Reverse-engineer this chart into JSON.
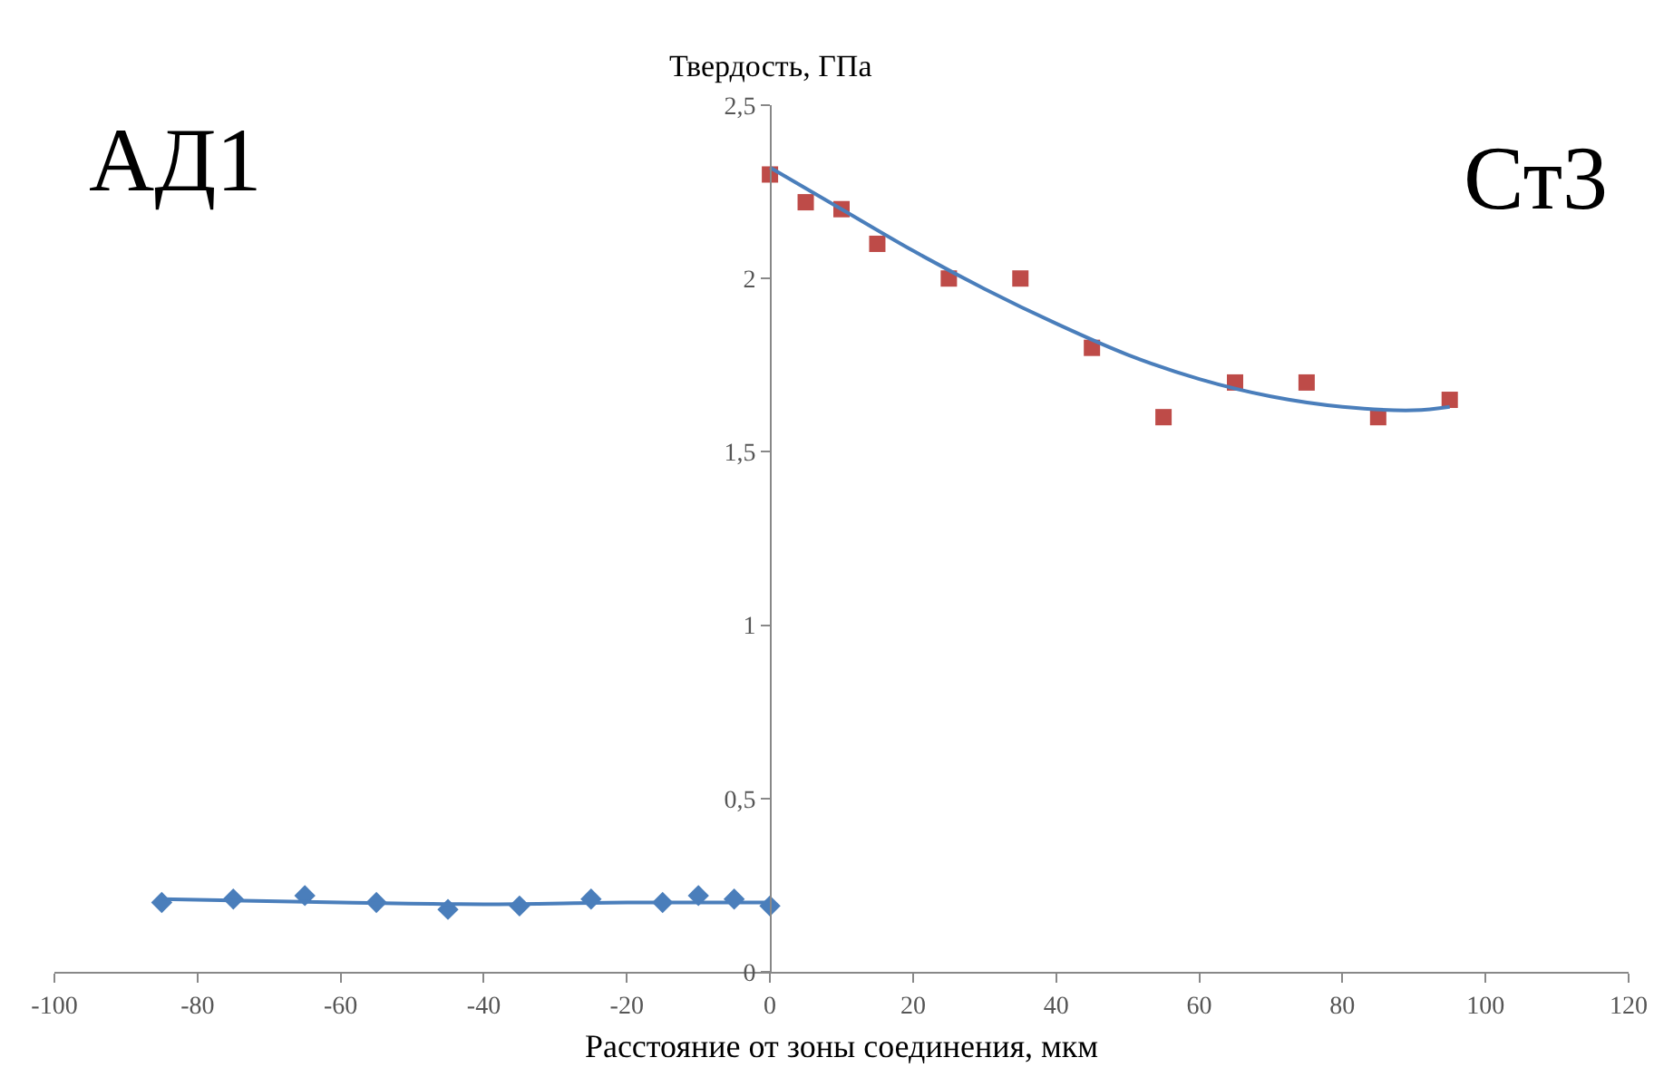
{
  "chart_data": {
    "type": "scatter",
    "xlabel": "Расстояние от зоны соединения, мкм",
    "ylabel": "Твердость, ГПа",
    "annotations": [
      "АД1",
      "Ст3"
    ],
    "series": [
      {
        "type": "scatter",
        "marker": "diamond",
        "color": "#4a7ebb",
        "x": [
          -85,
          -75,
          -65,
          -55,
          -45,
          -35,
          -25,
          -15,
          -10,
          -5,
          0
        ],
        "values": [
          0.2,
          0.21,
          0.22,
          0.2,
          0.18,
          0.19,
          0.21,
          0.2,
          0.22,
          0.21,
          0.19
        ]
      },
      {
        "type": "line",
        "marker": "none",
        "color": "#4a7ebb",
        "x": [
          -85,
          -60,
          -40,
          -20,
          0
        ],
        "values": [
          0.21,
          0.2,
          0.195,
          0.2,
          0.2
        ]
      },
      {
        "type": "scatter",
        "marker": "square",
        "color": "#be4b48",
        "x": [
          0,
          5,
          10,
          15,
          25,
          35,
          45,
          55,
          65,
          75,
          85,
          95
        ],
        "values": [
          2.3,
          2.22,
          2.2,
          2.1,
          2.0,
          2.0,
          1.8,
          1.6,
          1.7,
          1.7,
          1.6,
          1.65
        ]
      },
      {
        "type": "line",
        "marker": "none",
        "color": "#4a7ebb",
        "x": [
          0,
          10,
          20,
          30,
          40,
          50,
          60,
          70,
          80,
          90,
          95
        ],
        "values": [
          2.32,
          2.2,
          2.08,
          1.97,
          1.87,
          1.78,
          1.71,
          1.66,
          1.63,
          1.62,
          1.63
        ]
      }
    ],
    "xlim": [
      -100,
      120
    ],
    "xticks": [
      -100,
      -80,
      -60,
      -40,
      -20,
      0,
      20,
      40,
      60,
      80,
      100,
      120
    ],
    "ylim": [
      0,
      2.5
    ],
    "yticks": [
      0,
      {
        "value": 0.5,
        "label": "0,5"
      },
      1,
      {
        "value": 1.5,
        "label": "1,5"
      },
      2,
      {
        "value": 2.5,
        "label": "2,5"
      }
    ]
  }
}
